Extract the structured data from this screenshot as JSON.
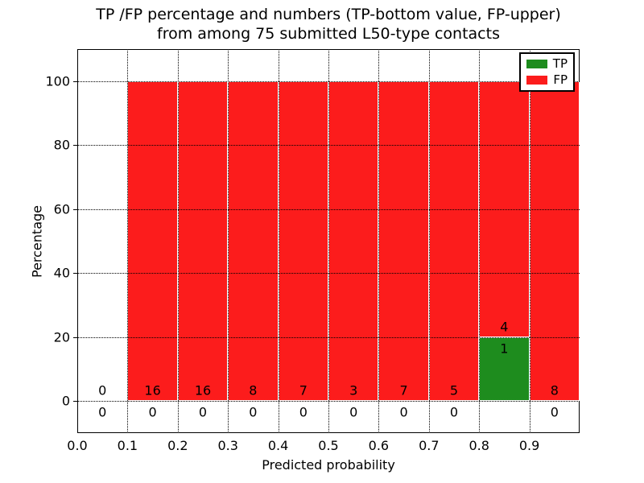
{
  "figure": {
    "title_line1": "TP /FP percentage and numbers (TP-bottom value, FP-upper)",
    "title_line2": "from among 75 submitted L50-type contacts"
  },
  "legend": {
    "items": [
      {
        "label": "TP",
        "color": "#1e8c1e"
      },
      {
        "label": "FP",
        "color": "#fc1c1c"
      }
    ]
  },
  "chart_data": {
    "type": "bar",
    "stacked": true,
    "title": "TP /FP percentage and numbers (TP-bottom value, FP-upper) from among 75 submitted L50-type contacts",
    "xlabel": "Predicted probability",
    "ylabel": "Percentage",
    "xlim": [
      0.0,
      1.0
    ],
    "ylim": [
      -10,
      110
    ],
    "grid": true,
    "grid_style": "dotted",
    "legend_position": "upper right",
    "tp_color": "#1e8c1e",
    "fp_color": "#fc1c1c",
    "axis_color": "#000000",
    "total_contacts": 75,
    "yticks": [
      {
        "value": 0,
        "label": "0"
      },
      {
        "value": 20,
        "label": "20"
      },
      {
        "value": 40,
        "label": "40"
      },
      {
        "value": 60,
        "label": "60"
      },
      {
        "value": 80,
        "label": "80"
      },
      {
        "value": 100,
        "label": "100"
      }
    ],
    "xticks": [
      {
        "value": 0.0,
        "label": "0.0"
      },
      {
        "value": 0.1,
        "label": "0.1"
      },
      {
        "value": 0.2,
        "label": "0.2"
      },
      {
        "value": 0.3,
        "label": "0.3"
      },
      {
        "value": 0.4,
        "label": "0.4"
      },
      {
        "value": 0.5,
        "label": "0.5"
      },
      {
        "value": 0.6,
        "label": "0.6"
      },
      {
        "value": 0.7,
        "label": "0.7"
      },
      {
        "value": 0.8,
        "label": "0.8"
      },
      {
        "value": 0.9,
        "label": "0.9"
      }
    ],
    "bins": [
      {
        "x0": 0.0,
        "x1": 0.1,
        "tp_count": 0,
        "fp_count": 0,
        "tp_pct": 0,
        "fp_pct": 0
      },
      {
        "x0": 0.1,
        "x1": 0.2,
        "tp_count": 0,
        "fp_count": 16,
        "tp_pct": 0,
        "fp_pct": 100
      },
      {
        "x0": 0.2,
        "x1": 0.3,
        "tp_count": 0,
        "fp_count": 16,
        "tp_pct": 0,
        "fp_pct": 100
      },
      {
        "x0": 0.3,
        "x1": 0.4,
        "tp_count": 0,
        "fp_count": 8,
        "tp_pct": 0,
        "fp_pct": 100
      },
      {
        "x0": 0.4,
        "x1": 0.5,
        "tp_count": 0,
        "fp_count": 7,
        "tp_pct": 0,
        "fp_pct": 100
      },
      {
        "x0": 0.5,
        "x1": 0.6,
        "tp_count": 0,
        "fp_count": 3,
        "tp_pct": 0,
        "fp_pct": 100
      },
      {
        "x0": 0.6,
        "x1": 0.7,
        "tp_count": 0,
        "fp_count": 7,
        "tp_pct": 0,
        "fp_pct": 100
      },
      {
        "x0": 0.7,
        "x1": 0.8,
        "tp_count": 0,
        "fp_count": 5,
        "tp_pct": 0,
        "fp_pct": 100
      },
      {
        "x0": 0.8,
        "x1": 0.9,
        "tp_count": 1,
        "fp_count": 4,
        "tp_pct": 20,
        "fp_pct": 80
      },
      {
        "x0": 0.9,
        "x1": 1.0,
        "tp_count": 0,
        "fp_count": 8,
        "tp_pct": 0,
        "fp_pct": 100
      }
    ]
  }
}
